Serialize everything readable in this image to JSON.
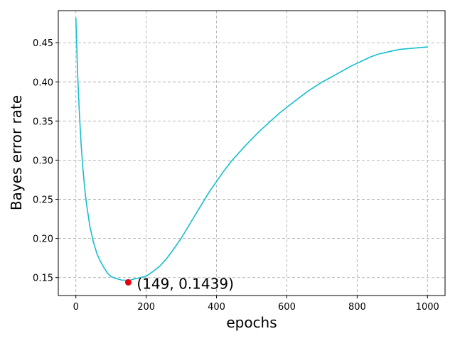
{
  "chart_data": {
    "type": "line",
    "title": "",
    "xlabel": "epochs",
    "ylabel": "Bayes error rate",
    "xlim": [
      -50,
      1050
    ],
    "ylim": [
      0.127,
      0.491
    ],
    "xticks": [
      0,
      200,
      400,
      600,
      800,
      1000
    ],
    "yticks": [
      0.15,
      0.2,
      0.25,
      0.3,
      0.35,
      0.4,
      0.45
    ],
    "xtick_labels": [
      "0",
      "200",
      "400",
      "600",
      "800",
      "1000"
    ],
    "ytick_labels": [
      "0.15",
      "0.20",
      "0.25",
      "0.30",
      "0.35",
      "0.40",
      "0.45"
    ],
    "grid": true,
    "series": [
      {
        "color": "#17becf",
        "x": [
          0,
          5,
          10,
          15,
          20,
          25,
          30,
          40,
          50,
          60,
          70,
          80,
          90,
          100,
          110,
          120,
          130,
          140,
          149,
          160,
          180,
          200,
          220,
          240,
          260,
          280,
          300,
          320,
          340,
          360,
          380,
          400,
          420,
          440,
          460,
          480,
          500,
          520,
          540,
          560,
          580,
          600,
          620,
          640,
          660,
          680,
          700,
          720,
          740,
          760,
          780,
          800,
          820,
          840,
          860,
          880,
          900,
          920,
          940,
          960,
          980,
          1000
        ],
        "y": [
          0.482,
          0.41,
          0.36,
          0.32,
          0.29,
          0.265,
          0.245,
          0.215,
          0.195,
          0.18,
          0.17,
          0.162,
          0.155,
          0.151,
          0.149,
          0.148,
          0.147,
          0.147,
          0.1465,
          0.148,
          0.15,
          0.152,
          0.158,
          0.165,
          0.175,
          0.187,
          0.2,
          0.215,
          0.23,
          0.245,
          0.26,
          0.273,
          0.286,
          0.298,
          0.308,
          0.318,
          0.327,
          0.336,
          0.344,
          0.352,
          0.36,
          0.367,
          0.374,
          0.381,
          0.388,
          0.394,
          0.4,
          0.405,
          0.41,
          0.415,
          0.42,
          0.424,
          0.428,
          0.432,
          0.435,
          0.437,
          0.439,
          0.441,
          0.442,
          0.443,
          0.444,
          0.445
        ]
      }
    ],
    "annotations": [
      {
        "x": 149,
        "y": 0.1439,
        "text": "(149, 0.1439)",
        "marker_color": "#e8000b"
      }
    ]
  }
}
